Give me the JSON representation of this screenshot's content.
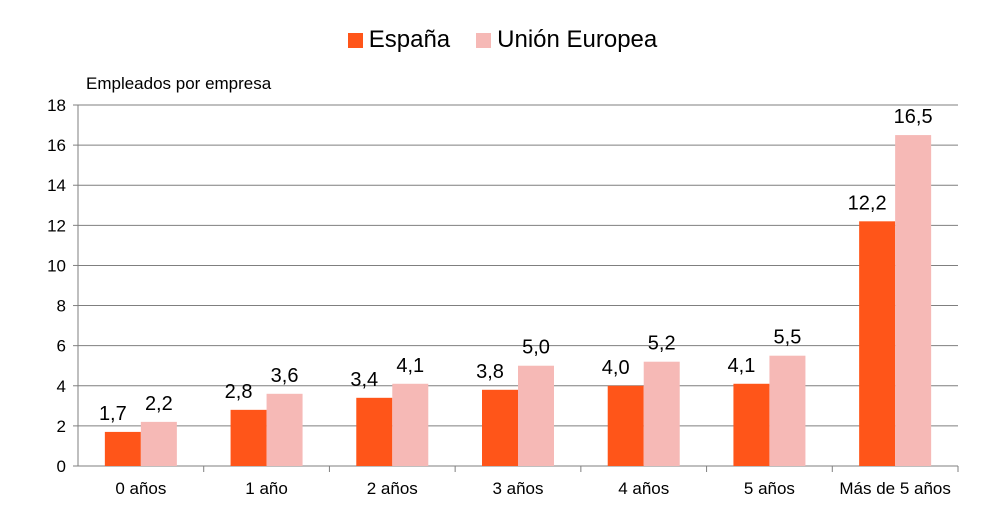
{
  "chart_data": {
    "type": "bar",
    "title": "",
    "ylabel": "Empleados por empresa",
    "xlabel": "",
    "ylim": [
      0,
      18
    ],
    "yticks": [
      0,
      2,
      4,
      6,
      8,
      10,
      12,
      14,
      16,
      18
    ],
    "ytick_labels": [
      "0",
      "2",
      "4",
      "6",
      "8",
      "10",
      "12",
      "14",
      "16",
      "18"
    ],
    "grid": true,
    "legend_position": "top-center",
    "categories": [
      "0 años",
      "1 año",
      "2 años",
      "3 años",
      "4 años",
      "5 años",
      "Más de 5 años"
    ],
    "series": [
      {
        "name": "España",
        "color": "#ff5519",
        "values": [
          1.7,
          2.8,
          3.4,
          3.8,
          4.0,
          4.1,
          12.2
        ],
        "labels": [
          "1,7",
          "2,8",
          "3,4",
          "3,8",
          "4,0",
          "4,1",
          "12,2"
        ]
      },
      {
        "name": "Unión Europea",
        "color": "#f6b9b6",
        "values": [
          2.2,
          3.6,
          4.1,
          5.0,
          5.2,
          5.5,
          16.5
        ],
        "labels": [
          "2,2",
          "3,6",
          "4,1",
          "5,0",
          "5,2",
          "5,5",
          "16,5"
        ]
      }
    ]
  }
}
